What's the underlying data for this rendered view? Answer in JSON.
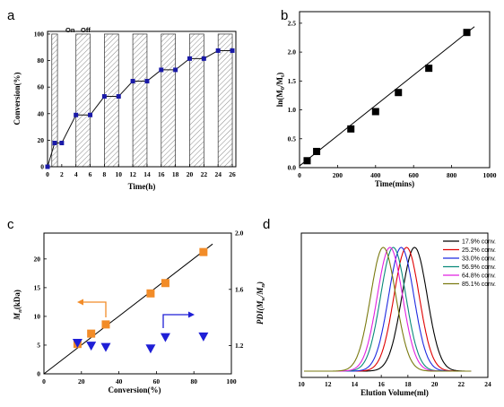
{
  "chart_data": [
    {
      "panel_label": "a",
      "type": "line",
      "xlabel": "Time(h)",
      "ylabel": "Conversion(%)",
      "xlim": [
        0,
        26.5
      ],
      "ylim": [
        0,
        102
      ],
      "xticks": [
        "0",
        "2",
        "4",
        "6",
        "8",
        "10",
        "12",
        "14",
        "16",
        "18",
        "20",
        "22",
        "24",
        "26"
      ],
      "yticks": [
        "0",
        "20",
        "40",
        "60",
        "80",
        "100"
      ],
      "annotations": [
        "On",
        "Off"
      ],
      "on_periods": [
        [
          0.6,
          1.4
        ],
        [
          4,
          6
        ],
        [
          8,
          10
        ],
        [
          12,
          14
        ],
        [
          16,
          18
        ],
        [
          20,
          22
        ],
        [
          24,
          26
        ]
      ],
      "series": [
        {
          "x": [
            0,
            1,
            2,
            4,
            6,
            8,
            10,
            12,
            14,
            16,
            18,
            20,
            22,
            24,
            26
          ],
          "y": [
            0,
            17.9,
            17.9,
            39,
            39,
            53,
            53,
            64.5,
            64.5,
            73,
            73,
            81.5,
            81.5,
            87.5,
            87.5
          ]
        }
      ]
    },
    {
      "panel_label": "b",
      "type": "scatter",
      "xlabel": "Time(mins)",
      "ylabel": "ln(M0/Mt)",
      "xlim": [
        0,
        1000
      ],
      "ylim": [
        0,
        2.7
      ],
      "xticks": [
        "0",
        "200",
        "400",
        "600",
        "800",
        "1000"
      ],
      "yticks": [
        "0.0",
        "0.5",
        "1.0",
        "1.5",
        "2.0",
        "2.5"
      ],
      "series": [
        {
          "x": [
            40,
            90,
            270,
            400,
            520,
            680,
            880
          ],
          "y": [
            0.12,
            0.28,
            0.67,
            0.97,
            1.3,
            1.72,
            2.34
          ]
        }
      ],
      "fit_line": {
        "x": [
          0,
          920
        ],
        "y": [
          0.03,
          2.44
        ]
      }
    },
    {
      "panel_label": "c",
      "type": "scatter",
      "xlabel": "Conversion(%)",
      "ylabel_left": "Mn(kDa)",
      "ylabel_right": "PDI(Mw/Mn)",
      "xlim": [
        0,
        100
      ],
      "ylim_left": [
        0,
        24.5
      ],
      "ylim_right": [
        1.0,
        2.0
      ],
      "xticks": [
        "0",
        "20",
        "40",
        "60",
        "80",
        "100"
      ],
      "yticks_left": [
        "0",
        "5",
        "10",
        "15",
        "20"
      ],
      "yticks_right": [
        "1.2",
        "1.6",
        "2.0"
      ],
      "series": [
        {
          "axis": "left",
          "color": "#f28c28",
          "marker": "square",
          "x": [
            17.9,
            25.2,
            33.0,
            56.9,
            64.8,
            85.1
          ],
          "y": [
            5.2,
            7.0,
            8.6,
            14.0,
            15.8,
            21.2
          ]
        },
        {
          "axis": "right",
          "color": "#1f1fd6",
          "marker": "triangle-down",
          "x": [
            17.9,
            25.2,
            33.0,
            56.9,
            64.8,
            85.1
          ],
          "y": [
            1.22,
            1.2,
            1.19,
            1.18,
            1.26,
            1.265
          ]
        }
      ],
      "fit_line": {
        "x": [
          0,
          90
        ],
        "y": [
          0,
          22.6
        ]
      }
    },
    {
      "panel_label": "d",
      "type": "line",
      "xlabel": "Elution Volume(ml)",
      "xlim": [
        10,
        24
      ],
      "xticks": [
        "10",
        "12",
        "14",
        "16",
        "18",
        "20",
        "22",
        "24"
      ],
      "series": [
        {
          "name": "17.9% conv.",
          "color": "#000000",
          "peak": 18.5
        },
        {
          "name": "25.2% conv.",
          "color": "#e00000",
          "peak": 17.9
        },
        {
          "name": "33.0% conv.",
          "color": "#1f2ae0",
          "peak": 17.5
        },
        {
          "name": "56.9% conv.",
          "color": "#0a8a7a",
          "peak": 16.9
        },
        {
          "name": "64.8% conv.",
          "color": "#e020e0",
          "peak": 16.65
        },
        {
          "name": "85.1% conv.",
          "color": "#7a7a10",
          "peak": 16.15
        }
      ]
    }
  ]
}
